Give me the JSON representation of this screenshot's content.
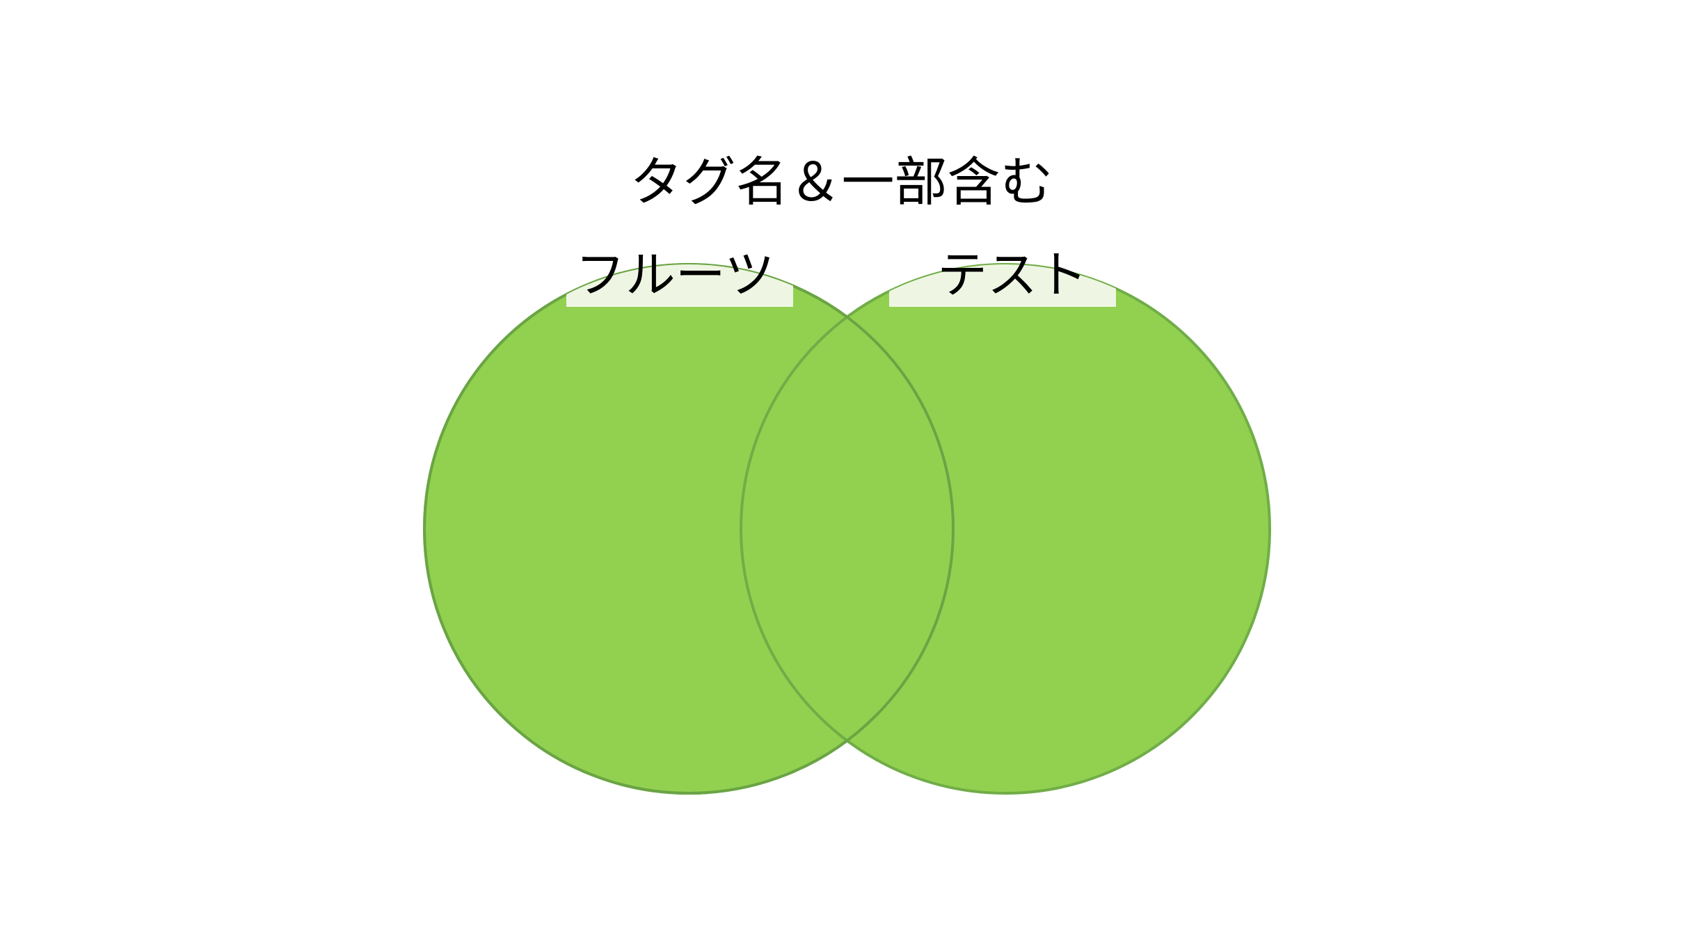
{
  "title": "タグ名＆一部含む",
  "sets": [
    {
      "label": "フルーツ"
    },
    {
      "label": "テスト"
    }
  ],
  "colors": {
    "background": "#ffffff",
    "circle_fill": "#92d050",
    "circle_stroke": "#70ad47",
    "intersection_stroke": "#6aa444",
    "label_backing": "#eef6e3",
    "text": "#000000"
  }
}
